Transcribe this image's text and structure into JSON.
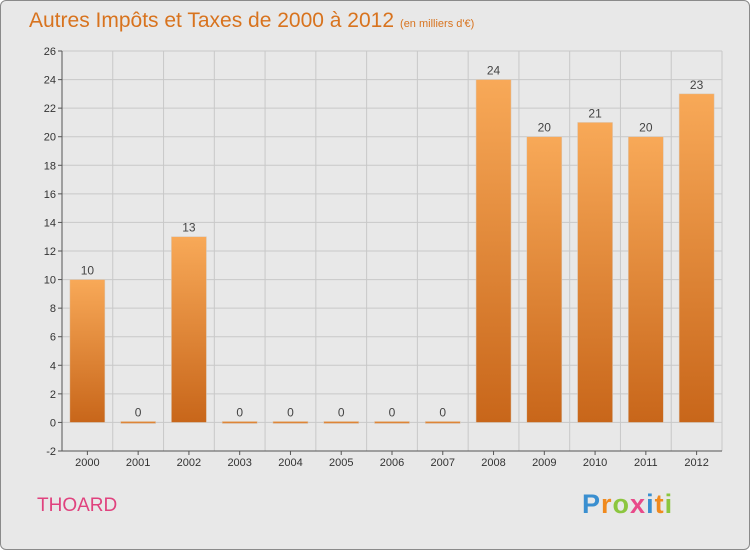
{
  "header": {
    "title": "Autres Impôts et Taxes de 2000 à 2012",
    "unit": "(en milliers d'€)"
  },
  "footer": {
    "commune": "THOARD",
    "logo_text": "Proxiti",
    "logo_letters": [
      {
        "ch": "P",
        "color": "#3a8fd0"
      },
      {
        "ch": "r",
        "color": "#f08a1e"
      },
      {
        "ch": "o",
        "color": "#8cc63f"
      },
      {
        "ch": "x",
        "color": "#e84a8a"
      },
      {
        "ch": "i",
        "color": "#3a8fd0"
      },
      {
        "ch": "t",
        "color": "#f08a1e"
      },
      {
        "ch": "i",
        "color": "#8cc63f"
      }
    ]
  },
  "colors": {
    "bar_top": "#f8a958",
    "bar_bottom": "#c8661a",
    "title": "#d8731e",
    "commune": "#e0427e",
    "grid": "#c8c8c8"
  },
  "chart_data": {
    "type": "bar",
    "title": "Autres Impôts et Taxes de 2000 à 2012",
    "subtitle": "(en milliers d'€)",
    "xlabel": "",
    "ylabel": "",
    "categories": [
      "2000",
      "2001",
      "2002",
      "2003",
      "2004",
      "2005",
      "2006",
      "2007",
      "2008",
      "2009",
      "2010",
      "2011",
      "2012"
    ],
    "values": [
      10,
      0,
      13,
      0,
      0,
      0,
      0,
      0,
      24,
      20,
      21,
      20,
      23
    ],
    "ylim": [
      -2,
      26
    ],
    "yticks": [
      -2,
      0,
      2,
      4,
      6,
      8,
      10,
      12,
      14,
      16,
      18,
      20,
      22,
      24,
      26
    ],
    "grid": true,
    "data_labels": true
  }
}
